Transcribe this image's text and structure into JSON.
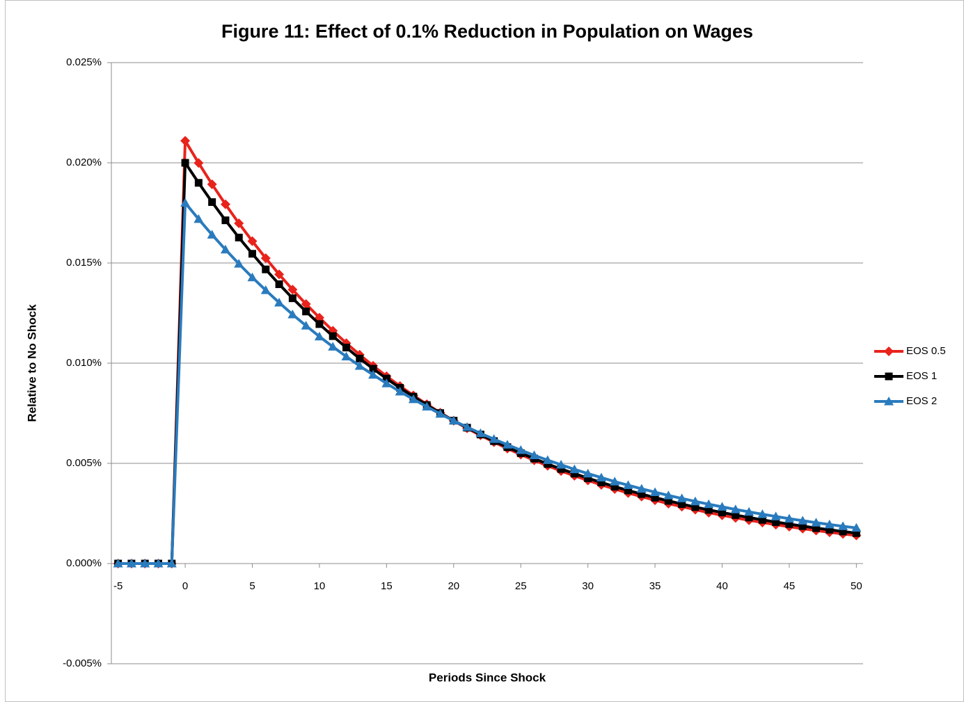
{
  "chart_data": {
    "type": "line",
    "title": "Figure 11:  Effect of 0.1% Reduction in Population on Wages",
    "x_label": "Periods Since Shock",
    "y_label": "Relative to No Shock",
    "x": [
      -5,
      -4,
      -3,
      -2,
      -1,
      0,
      1,
      2,
      3,
      4,
      5,
      6,
      7,
      8,
      9,
      10,
      11,
      12,
      13,
      14,
      15,
      16,
      17,
      18,
      19,
      20,
      21,
      22,
      23,
      24,
      25,
      26,
      27,
      28,
      29,
      30,
      31,
      32,
      33,
      34,
      35,
      36,
      37,
      38,
      39,
      40,
      41,
      42,
      43,
      44,
      45,
      46,
      47,
      48,
      49,
      50
    ],
    "xlim": [
      -5.5,
      50.5
    ],
    "xticks": [
      -5,
      0,
      5,
      10,
      15,
      20,
      25,
      30,
      35,
      40,
      45,
      50
    ],
    "ylim": [
      -0.005,
      0.025
    ],
    "yticks": [
      {
        "value": -0.005,
        "label": "-0.005%"
      },
      {
        "value": 0,
        "label": "0.000%"
      },
      {
        "value": 0.005,
        "label": "0.005%"
      },
      {
        "value": 0.01,
        "label": "0.010%"
      },
      {
        "value": 0.015,
        "label": "0.015%"
      },
      {
        "value": 0.02,
        "label": "0.020%"
      },
      {
        "value": 0.025,
        "label": "0.025%"
      }
    ],
    "grid": true,
    "legend": "right",
    "series": [
      {
        "name": "EOS 0.5",
        "color": "#e8231c",
        "marker": "diamond",
        "values": [
          0,
          0,
          0,
          0,
          0,
          0.0211,
          0.01999,
          0.01893,
          0.01793,
          0.01698,
          0.01609,
          0.01524,
          0.01443,
          0.01367,
          0.01295,
          0.01227,
          0.01162,
          0.011,
          0.01042,
          0.00987,
          0.00935,
          0.00886,
          0.00839,
          0.00795,
          0.00753,
          0.00713,
          0.00675,
          0.0064,
          0.00606,
          0.00574,
          0.00544,
          0.00515,
          0.00488,
          0.00462,
          0.00438,
          0.00415,
          0.00393,
          0.00372,
          0.00352,
          0.00334,
          0.00316,
          0.00299,
          0.00284,
          0.00269,
          0.00254,
          0.00241,
          0.00228,
          0.00216,
          0.00205,
          0.00194,
          0.00184,
          0.00174,
          0.00165,
          0.00156,
          0.00148,
          0.0014
        ]
      },
      {
        "name": "EOS 1",
        "color": "#000000",
        "marker": "square",
        "values": [
          0,
          0,
          0,
          0,
          0,
          0.02,
          0.019,
          0.01804,
          0.01713,
          0.01627,
          0.01546,
          0.01468,
          0.01394,
          0.01324,
          0.01258,
          0.01195,
          0.01135,
          0.01078,
          0.01023,
          0.00972,
          0.00923,
          0.00877,
          0.00833,
          0.00791,
          0.00751,
          0.00713,
          0.00678,
          0.00644,
          0.00611,
          0.00581,
          0.00551,
          0.00524,
          0.00497,
          0.00472,
          0.00449,
          0.00426,
          0.00405,
          0.00384,
          0.00365,
          0.00347,
          0.00329,
          0.00313,
          0.00297,
          0.00282,
          0.00268,
          0.00255,
          0.00242,
          0.0023,
          0.00218,
          0.00207,
          0.00197,
          0.00187,
          0.00177,
          0.00169,
          0.0016,
          0.00152
        ]
      },
      {
        "name": "EOS 2",
        "color": "#2a7bbd",
        "marker": "triangle",
        "values": [
          0,
          0,
          0,
          0,
          0,
          0.018,
          0.01719,
          0.01641,
          0.01567,
          0.01496,
          0.01428,
          0.01364,
          0.01302,
          0.01243,
          0.01187,
          0.01133,
          0.01082,
          0.01033,
          0.00986,
          0.00942,
          0.00899,
          0.00858,
          0.0082,
          0.00783,
          0.00747,
          0.00713,
          0.00681,
          0.0065,
          0.00621,
          0.00593,
          0.00566,
          0.0054,
          0.00516,
          0.00493,
          0.0047,
          0.00449,
          0.00429,
          0.00409,
          0.00391,
          0.00373,
          0.00356,
          0.0034,
          0.00325,
          0.0031,
          0.00296,
          0.00283,
          0.0027,
          0.00258,
          0.00246,
          0.00235,
          0.00224,
          0.00214,
          0.00204,
          0.00195,
          0.00186,
          0.00178
        ]
      }
    ]
  }
}
